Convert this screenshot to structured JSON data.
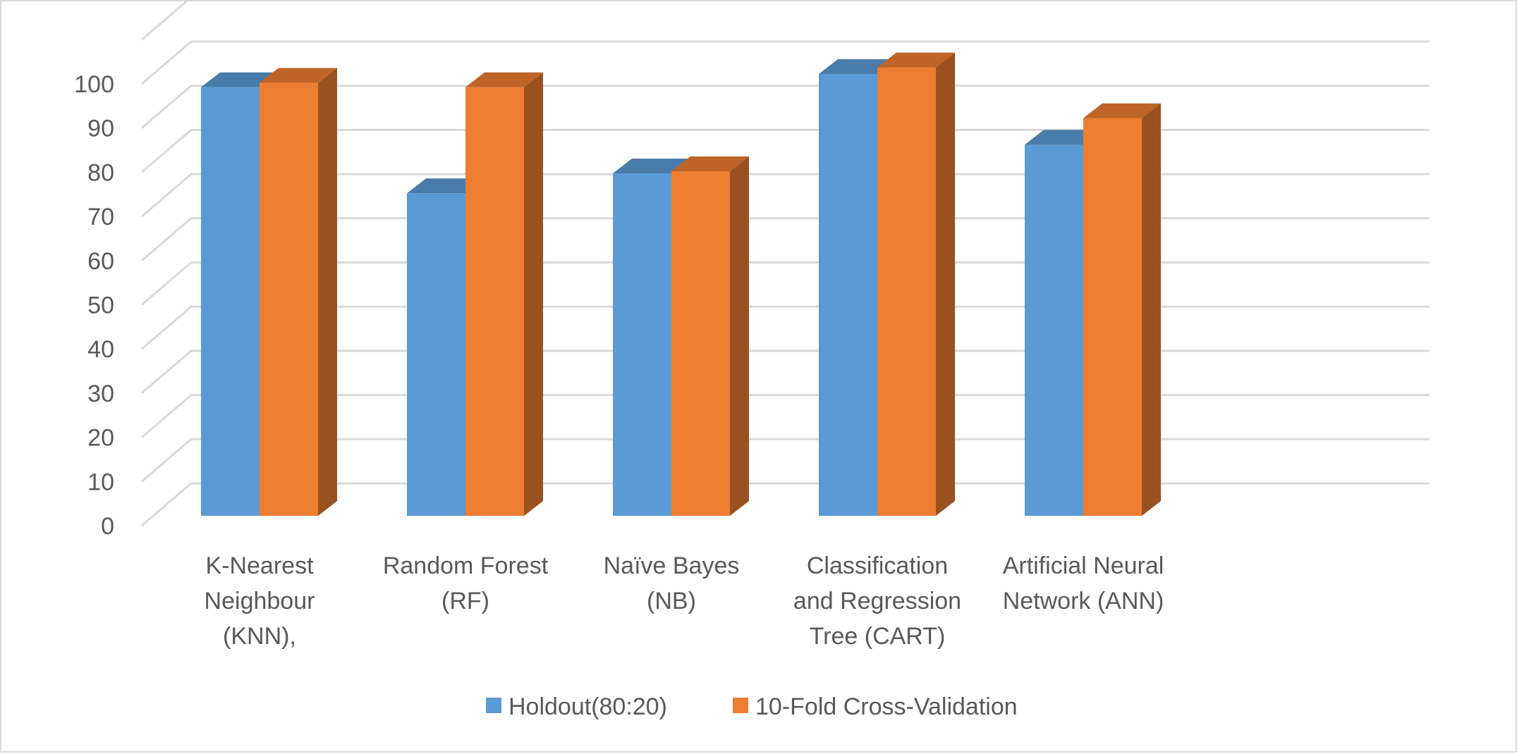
{
  "chart_data": {
    "type": "bar",
    "style": "3d-clustered-column",
    "categories": [
      [
        "K-Nearest",
        "Neighbour",
        "(KNN),"
      ],
      [
        "Random Forest",
        "(RF)"
      ],
      [
        "Naïve Bayes",
        "(NB)"
      ],
      [
        "Classification",
        "and Regression",
        "Tree (CART)"
      ],
      [
        "Artificial Neural",
        "Network (ANN)"
      ]
    ],
    "series": [
      {
        "name": "Holdout(80:20)",
        "color": "#5b9bd5",
        "values": [
          97,
          73,
          77.5,
          100,
          84
        ]
      },
      {
        "name": "10-Fold Cross-Validation",
        "color": "#ed7d31",
        "values": [
          98,
          97,
          78,
          101.5,
          90
        ]
      }
    ],
    "y_ticks": [
      "0",
      "10",
      "20",
      "30",
      "40",
      "50",
      "60",
      "70",
      "80",
      "90",
      "100"
    ],
    "ylim": [
      0,
      110
    ],
    "grid": true,
    "legend_position": "bottom",
    "title": "",
    "xlabel": "",
    "ylabel": ""
  }
}
